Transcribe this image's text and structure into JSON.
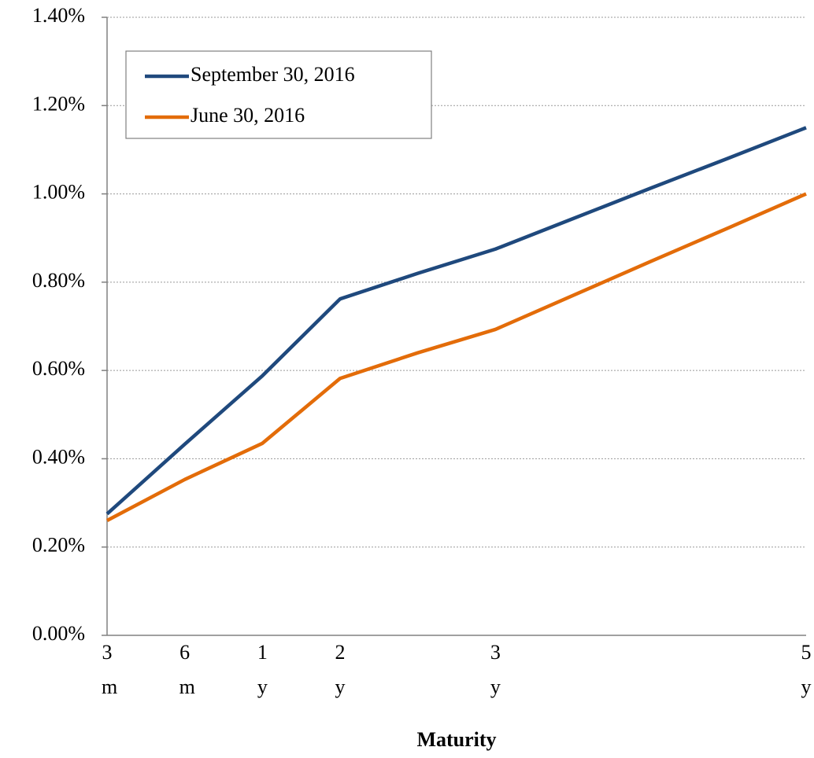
{
  "chart_data": {
    "type": "line",
    "x_label": "Maturity",
    "categories": [
      "3m",
      "6m",
      "1y",
      "2y",
      null,
      "3y",
      null,
      null,
      null,
      "5y"
    ],
    "series": [
      {
        "name": "September 30, 2016",
        "color": "#1f497d",
        "values": [
          0.275,
          0.433,
          0.588,
          0.762,
          0.82,
          0.875,
          0.944,
          1.013,
          1.081,
          1.15
        ]
      },
      {
        "name": "June 30, 2016",
        "color": "#e36c09",
        "values": [
          0.26,
          0.353,
          0.435,
          0.582,
          0.64,
          0.693,
          0.77,
          0.847,
          0.923,
          1.0
        ]
      }
    ],
    "ylim": [
      0,
      1.4
    ],
    "yticks": [
      {
        "value": 0,
        "label": "0.00%"
      },
      {
        "value": 0.2,
        "label": "0.20%"
      },
      {
        "value": 0.4,
        "label": "0.40%"
      },
      {
        "value": 0.6,
        "label": "0.60%"
      },
      {
        "value": 0.8,
        "label": "0.80%"
      },
      {
        "value": 1.0,
        "label": "1.00%"
      },
      {
        "value": 1.2,
        "label": "1.20%"
      },
      {
        "value": 1.4,
        "label": "1.40%"
      }
    ],
    "grid": true,
    "legend": "upper left"
  }
}
